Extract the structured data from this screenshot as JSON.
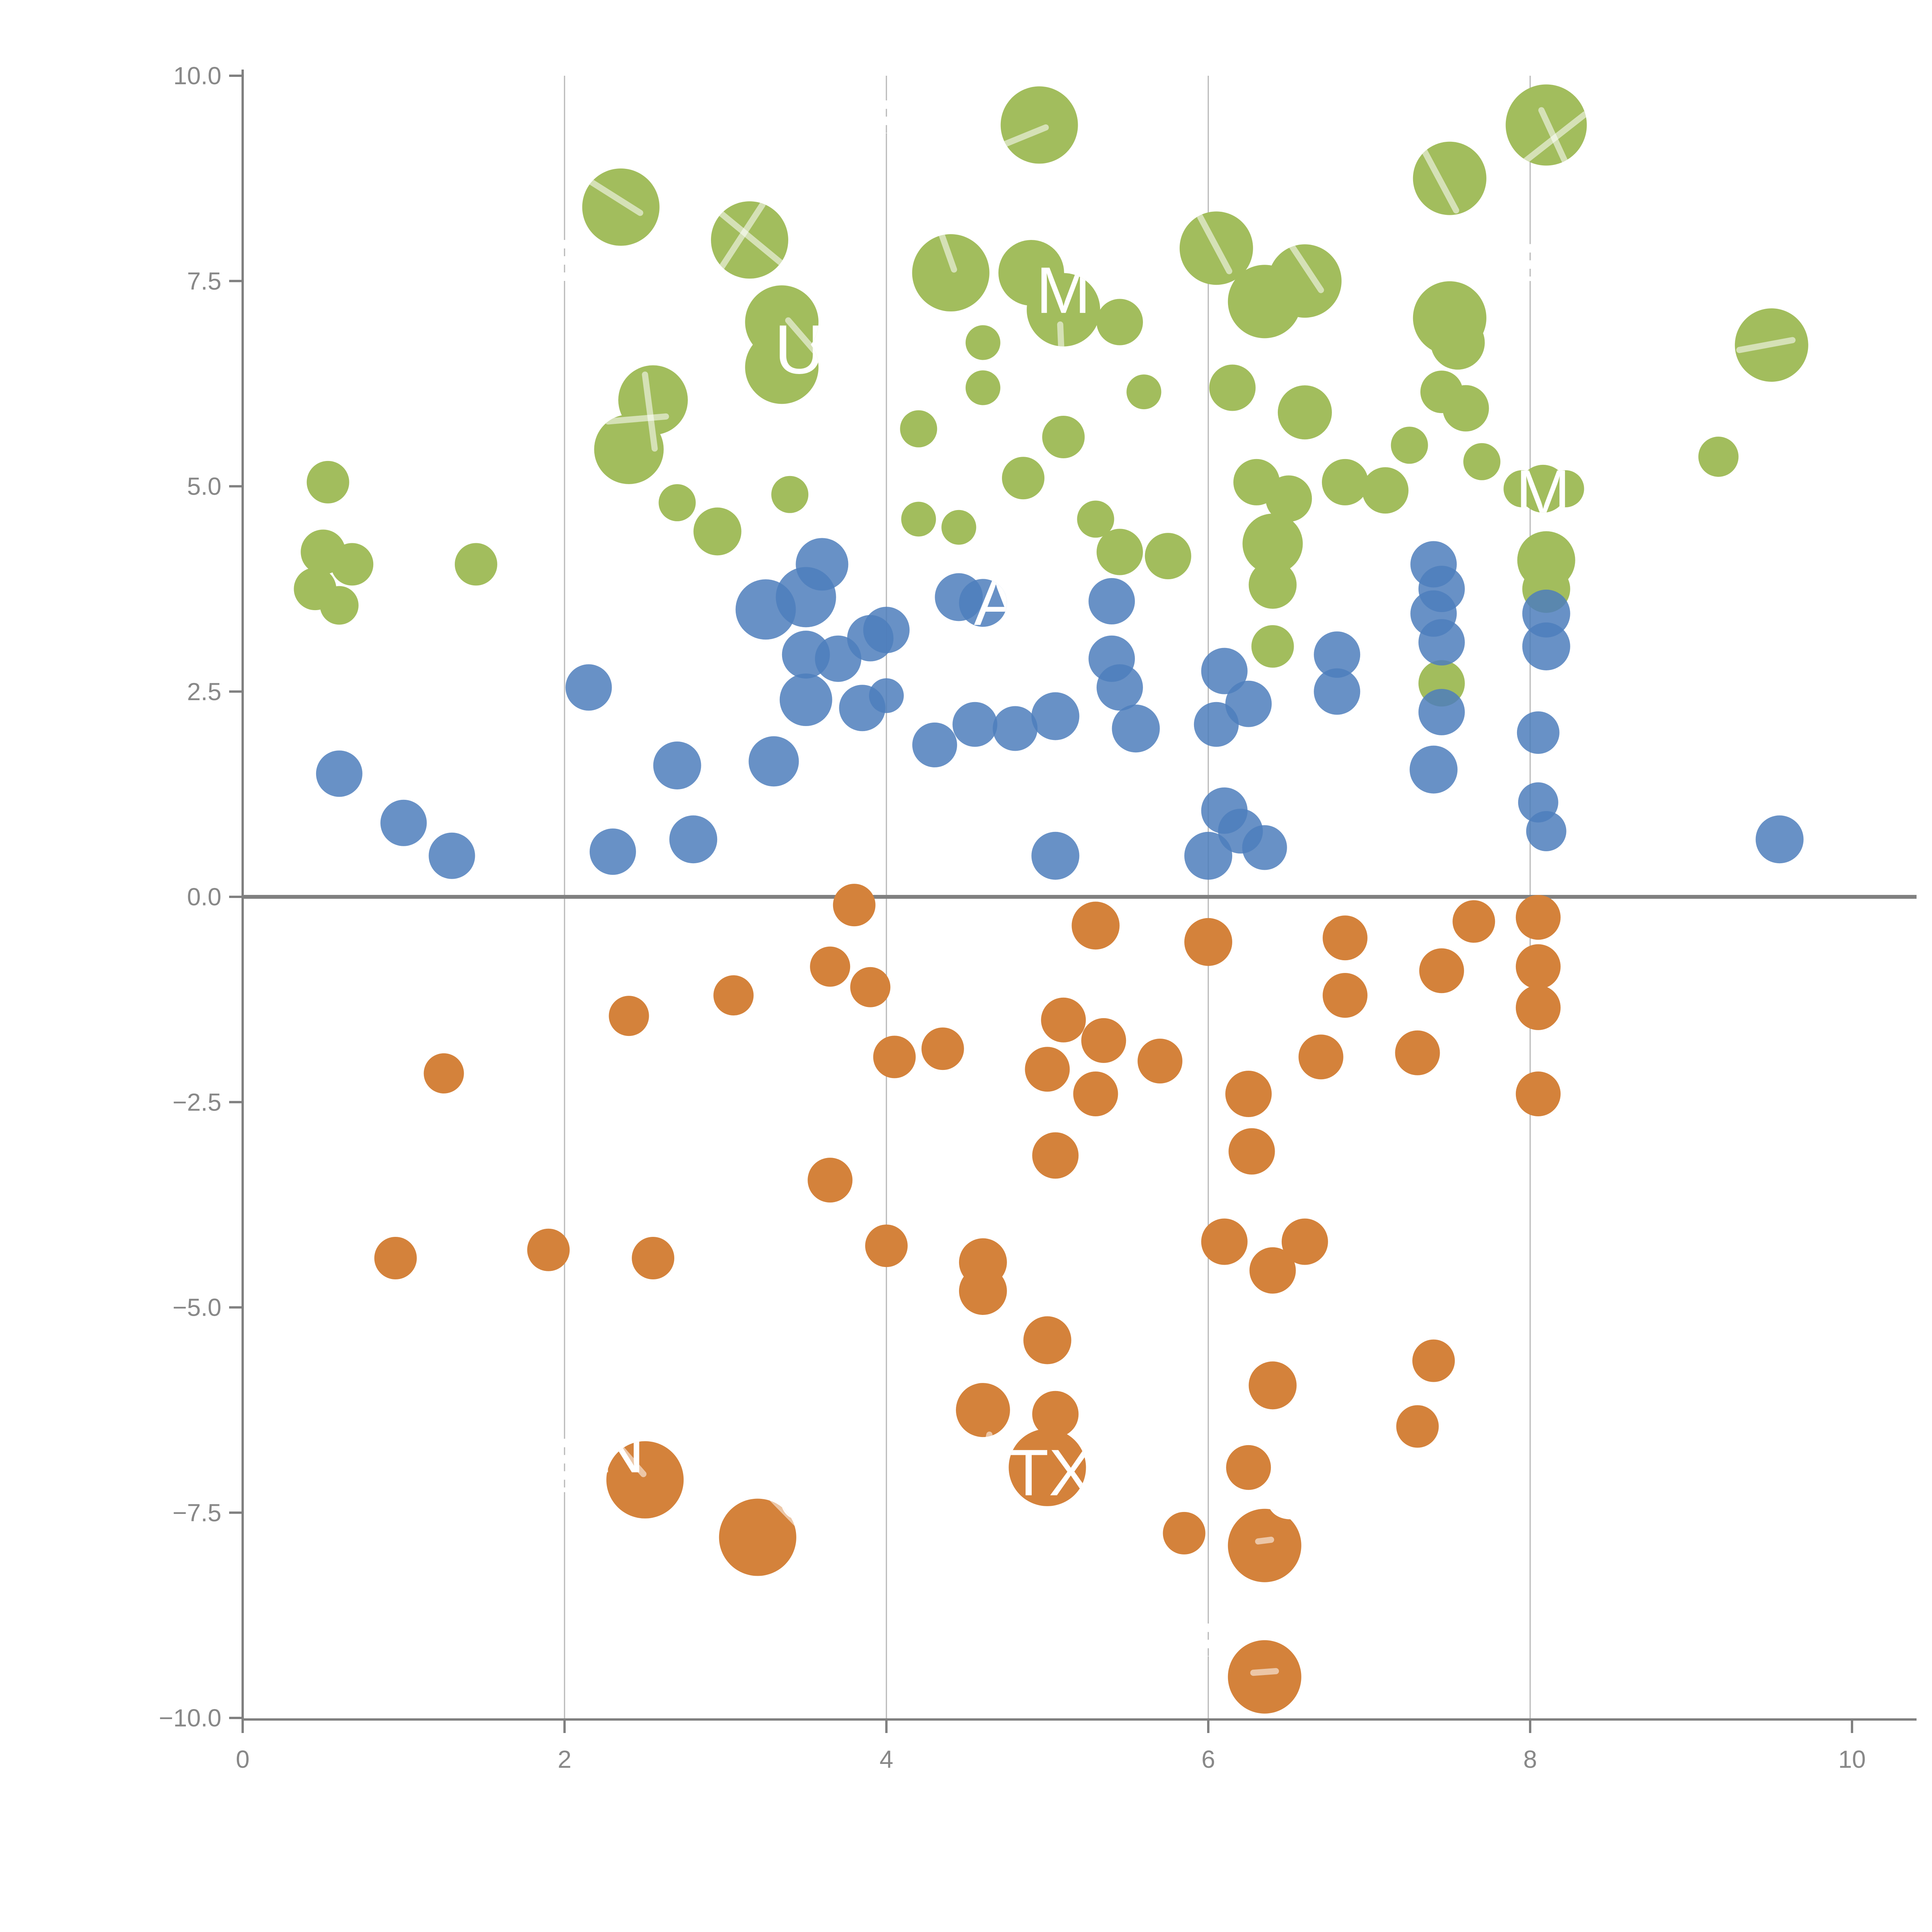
{
  "chart_data": {
    "type": "scatter",
    "title": "",
    "xlabel": "",
    "ylabel": "",
    "xlim": [
      0,
      10
    ],
    "ylim": [
      -10,
      10
    ],
    "x_ticks": [
      0,
      2,
      4,
      6,
      8,
      10
    ],
    "x_tick_labels": [
      "0",
      "2",
      "4",
      "6",
      "8",
      "10"
    ],
    "y_ticks": [
      10.0,
      7.5,
      5.0,
      2.5,
      0.0,
      -2.5,
      -5.0,
      -7.5,
      -10.0
    ],
    "y_tick_labels": [
      "10.0",
      "7.5",
      "5.0",
      "2.5",
      "0.0",
      "−2.5",
      "−5.0",
      "−7.5",
      "−10.0"
    ],
    "grid_x_values": [
      2,
      4,
      6,
      8
    ],
    "grid_on": true,
    "zero_line_y": 0,
    "legend": "none",
    "series": [
      {
        "name": "green",
        "color": "#a2bd5d",
        "opacity": 1.0,
        "points": [
          {
            "x": 0.53,
            "y": 5.05,
            "r": 55
          },
          {
            "x": 0.5,
            "y": 4.2,
            "r": 58
          },
          {
            "x": 0.68,
            "y": 4.05,
            "r": 55
          },
          {
            "x": 0.45,
            "y": 3.75,
            "r": 55
          },
          {
            "x": 0.6,
            "y": 3.55,
            "r": 50
          },
          {
            "x": 1.45,
            "y": 4.05,
            "r": 55
          },
          {
            "x": 2.35,
            "y": 8.4,
            "r": 100
          },
          {
            "x": 3.15,
            "y": 8.0,
            "r": 100
          },
          {
            "x": 3.35,
            "y": 7.0,
            "r": 95
          },
          {
            "x": 3.35,
            "y": 6.45,
            "r": 95
          },
          {
            "x": 2.55,
            "y": 6.05,
            "r": 90
          },
          {
            "x": 2.4,
            "y": 5.45,
            "r": 90
          },
          {
            "x": 2.95,
            "y": 4.45,
            "r": 62
          },
          {
            "x": 2.7,
            "y": 4.8,
            "r": 48
          },
          {
            "x": 3.4,
            "y": 4.9,
            "r": 48
          },
          {
            "x": 4.4,
            "y": 7.6,
            "r": 100
          },
          {
            "x": 4.6,
            "y": 6.75,
            "r": 45
          },
          {
            "x": 4.6,
            "y": 6.2,
            "r": 45
          },
          {
            "x": 4.2,
            "y": 5.7,
            "r": 48
          },
          {
            "x": 4.95,
            "y": 9.4,
            "r": 100
          },
          {
            "x": 4.9,
            "y": 7.6,
            "r": 85
          },
          {
            "x": 5.1,
            "y": 7.15,
            "r": 95
          },
          {
            "x": 5.45,
            "y": 7.0,
            "r": 60
          },
          {
            "x": 5.1,
            "y": 5.6,
            "r": 55
          },
          {
            "x": 4.2,
            "y": 4.6,
            "r": 45
          },
          {
            "x": 4.45,
            "y": 4.5,
            "r": 45
          },
          {
            "x": 4.85,
            "y": 5.1,
            "r": 55
          },
          {
            "x": 5.3,
            "y": 4.6,
            "r": 48
          },
          {
            "x": 5.45,
            "y": 4.2,
            "r": 60
          },
          {
            "x": 5.75,
            "y": 4.15,
            "r": 60
          },
          {
            "x": 5.6,
            "y": 6.15,
            "r": 45
          },
          {
            "x": 6.15,
            "y": 6.2,
            "r": 60
          },
          {
            "x": 6.6,
            "y": 5.9,
            "r": 70
          },
          {
            "x": 6.3,
            "y": 5.05,
            "r": 60
          },
          {
            "x": 6.5,
            "y": 4.85,
            "r": 60
          },
          {
            "x": 6.85,
            "y": 5.05,
            "r": 60
          },
          {
            "x": 7.1,
            "y": 4.95,
            "r": 60
          },
          {
            "x": 6.4,
            "y": 4.3,
            "r": 78
          },
          {
            "x": 6.4,
            "y": 3.8,
            "r": 62
          },
          {
            "x": 6.4,
            "y": 3.05,
            "r": 55
          },
          {
            "x": 6.05,
            "y": 7.9,
            "r": 95
          },
          {
            "x": 6.35,
            "y": 7.25,
            "r": 95
          },
          {
            "x": 6.6,
            "y": 7.5,
            "r": 95
          },
          {
            "x": 7.5,
            "y": 8.75,
            "r": 95
          },
          {
            "x": 7.5,
            "y": 7.05,
            "r": 95
          },
          {
            "x": 7.55,
            "y": 6.75,
            "r": 70
          },
          {
            "x": 7.45,
            "y": 6.15,
            "r": 55
          },
          {
            "x": 7.6,
            "y": 5.95,
            "r": 60
          },
          {
            "x": 7.25,
            "y": 5.5,
            "r": 48
          },
          {
            "x": 7.7,
            "y": 5.3,
            "r": 48
          },
          {
            "x": 8.1,
            "y": 9.4,
            "r": 105
          },
          {
            "x": 7.95,
            "y": 4.97,
            "r": 48
          },
          {
            "x": 8.08,
            "y": 4.97,
            "r": 62
          },
          {
            "x": 8.22,
            "y": 4.97,
            "r": 48
          },
          {
            "x": 8.1,
            "y": 4.1,
            "r": 75
          },
          {
            "x": 8.1,
            "y": 3.75,
            "r": 62
          },
          {
            "x": 7.45,
            "y": 2.6,
            "r": 60
          },
          {
            "x": 9.17,
            "y": 5.36,
            "r": 52
          },
          {
            "x": 9.5,
            "y": 6.72,
            "r": 95
          }
        ]
      },
      {
        "name": "orange",
        "color": "#d4823b",
        "opacity": 1.0,
        "points": [
          {
            "x": 1.25,
            "y": -2.15,
            "r": 52
          },
          {
            "x": 2.4,
            "y": -1.45,
            "r": 52
          },
          {
            "x": 3.05,
            "y": -1.2,
            "r": 52
          },
          {
            "x": 3.8,
            "y": -0.1,
            "r": 55
          },
          {
            "x": 3.65,
            "y": -0.85,
            "r": 52
          },
          {
            "x": 3.9,
            "y": -1.1,
            "r": 52
          },
          {
            "x": 5.3,
            "y": -0.35,
            "r": 62
          },
          {
            "x": 6.0,
            "y": -0.55,
            "r": 62
          },
          {
            "x": 6.85,
            "y": -0.5,
            "r": 58
          },
          {
            "x": 6.85,
            "y": -1.2,
            "r": 58
          },
          {
            "x": 6.7,
            "y": -1.95,
            "r": 58
          },
          {
            "x": 5.1,
            "y": -1.5,
            "r": 58
          },
          {
            "x": 5.35,
            "y": -1.75,
            "r": 58
          },
          {
            "x": 5.0,
            "y": -2.1,
            "r": 58
          },
          {
            "x": 5.3,
            "y": -2.4,
            "r": 58
          },
          {
            "x": 5.7,
            "y": -2.0,
            "r": 58
          },
          {
            "x": 4.05,
            "y": -1.95,
            "r": 55
          },
          {
            "x": 4.35,
            "y": -1.85,
            "r": 55
          },
          {
            "x": 5.05,
            "y": -3.15,
            "r": 60
          },
          {
            "x": 6.25,
            "y": -2.4,
            "r": 60
          },
          {
            "x": 6.27,
            "y": -3.1,
            "r": 60
          },
          {
            "x": 3.65,
            "y": -3.45,
            "r": 58
          },
          {
            "x": 0.95,
            "y": -4.4,
            "r": 55
          },
          {
            "x": 1.9,
            "y": -4.3,
            "r": 55
          },
          {
            "x": 2.55,
            "y": -4.4,
            "r": 55
          },
          {
            "x": 4.0,
            "y": -4.25,
            "r": 55
          },
          {
            "x": 4.6,
            "y": -4.45,
            "r": 62
          },
          {
            "x": 4.6,
            "y": -4.8,
            "r": 62
          },
          {
            "x": 5.0,
            "y": -5.4,
            "r": 62
          },
          {
            "x": 4.6,
            "y": -6.25,
            "r": 70
          },
          {
            "x": 5.05,
            "y": -6.3,
            "r": 60
          },
          {
            "x": 6.1,
            "y": -4.2,
            "r": 60
          },
          {
            "x": 6.6,
            "y": -4.2,
            "r": 60
          },
          {
            "x": 6.4,
            "y": -4.55,
            "r": 60
          },
          {
            "x": 6.4,
            "y": -5.95,
            "r": 62
          },
          {
            "x": 7.3,
            "y": -1.9,
            "r": 58
          },
          {
            "x": 7.45,
            "y": -0.9,
            "r": 58
          },
          {
            "x": 7.65,
            "y": -0.3,
            "r": 55
          },
          {
            "x": 8.05,
            "y": -0.25,
            "r": 58
          },
          {
            "x": 8.05,
            "y": -0.85,
            "r": 58
          },
          {
            "x": 8.05,
            "y": -1.35,
            "r": 58
          },
          {
            "x": 8.05,
            "y": -2.4,
            "r": 58
          },
          {
            "x": 7.3,
            "y": -6.45,
            "r": 55
          },
          {
            "x": 7.4,
            "y": -5.65,
            "r": 55
          },
          {
            "x": 2.5,
            "y": -7.1,
            "r": 100
          },
          {
            "x": 3.2,
            "y": -7.8,
            "r": 100
          },
          {
            "x": 5.0,
            "y": -6.95,
            "r": 100
          },
          {
            "x": 5.85,
            "y": -7.75,
            "r": 55
          },
          {
            "x": 6.25,
            "y": -6.95,
            "r": 58
          },
          {
            "x": 6.35,
            "y": -7.9,
            "r": 95
          },
          {
            "x": 6.35,
            "y": -9.5,
            "r": 95
          }
        ]
      },
      {
        "name": "blue",
        "color": "#4e7ebc",
        "opacity": 0.85,
        "points": [
          {
            "x": 0.6,
            "y": 1.5,
            "r": 60
          },
          {
            "x": 1.0,
            "y": 0.9,
            "r": 60
          },
          {
            "x": 1.3,
            "y": 0.5,
            "r": 60
          },
          {
            "x": 2.15,
            "y": 2.55,
            "r": 60
          },
          {
            "x": 2.7,
            "y": 1.6,
            "r": 62
          },
          {
            "x": 2.3,
            "y": 0.55,
            "r": 60
          },
          {
            "x": 2.8,
            "y": 0.7,
            "r": 62
          },
          {
            "x": 3.25,
            "y": 3.5,
            "r": 78
          },
          {
            "x": 3.5,
            "y": 3.65,
            "r": 78
          },
          {
            "x": 3.6,
            "y": 4.05,
            "r": 68
          },
          {
            "x": 3.5,
            "y": 2.95,
            "r": 62
          },
          {
            "x": 3.5,
            "y": 2.4,
            "r": 68
          },
          {
            "x": 3.7,
            "y": 2.9,
            "r": 60
          },
          {
            "x": 3.9,
            "y": 3.15,
            "r": 60
          },
          {
            "x": 3.85,
            "y": 2.3,
            "r": 60
          },
          {
            "x": 3.3,
            "y": 1.65,
            "r": 65
          },
          {
            "x": 4.0,
            "y": 3.25,
            "r": 60
          },
          {
            "x": 4.0,
            "y": 2.45,
            "r": 45
          },
          {
            "x": 4.45,
            "y": 3.65,
            "r": 62
          },
          {
            "x": 4.6,
            "y": 3.58,
            "r": 62
          },
          {
            "x": 4.3,
            "y": 1.85,
            "r": 58
          },
          {
            "x": 4.55,
            "y": 2.1,
            "r": 58
          },
          {
            "x": 4.8,
            "y": 2.05,
            "r": 58
          },
          {
            "x": 5.05,
            "y": 2.2,
            "r": 62
          },
          {
            "x": 5.55,
            "y": 2.05,
            "r": 62
          },
          {
            "x": 5.4,
            "y": 3.6,
            "r": 60
          },
          {
            "x": 5.4,
            "y": 2.9,
            "r": 60
          },
          {
            "x": 5.45,
            "y": 2.55,
            "r": 60
          },
          {
            "x": 5.05,
            "y": 0.5,
            "r": 62
          },
          {
            "x": 6.0,
            "y": 0.5,
            "r": 62
          },
          {
            "x": 6.2,
            "y": 0.8,
            "r": 58
          },
          {
            "x": 6.35,
            "y": 0.6,
            "r": 58
          },
          {
            "x": 6.1,
            "y": 1.05,
            "r": 60
          },
          {
            "x": 6.05,
            "y": 2.1,
            "r": 58
          },
          {
            "x": 6.1,
            "y": 2.75,
            "r": 60
          },
          {
            "x": 6.25,
            "y": 2.35,
            "r": 60
          },
          {
            "x": 6.8,
            "y": 2.95,
            "r": 60
          },
          {
            "x": 6.8,
            "y": 2.5,
            "r": 60
          },
          {
            "x": 7.4,
            "y": 4.05,
            "r": 60
          },
          {
            "x": 7.45,
            "y": 3.75,
            "r": 60
          },
          {
            "x": 7.4,
            "y": 3.45,
            "r": 60
          },
          {
            "x": 7.45,
            "y": 3.1,
            "r": 60
          },
          {
            "x": 7.45,
            "y": 2.25,
            "r": 60
          },
          {
            "x": 7.4,
            "y": 1.55,
            "r": 62
          },
          {
            "x": 8.1,
            "y": 3.45,
            "r": 62
          },
          {
            "x": 8.1,
            "y": 3.05,
            "r": 62
          },
          {
            "x": 8.05,
            "y": 2.0,
            "r": 55
          },
          {
            "x": 8.05,
            "y": 1.15,
            "r": 52
          },
          {
            "x": 8.1,
            "y": 0.8,
            "r": 52
          },
          {
            "x": 9.55,
            "y": 0.7,
            "r": 62
          }
        ]
      }
    ],
    "point_labels": [
      {
        "text": "U",
        "x": 3.46,
        "y": 6.68,
        "size": 180
      },
      {
        "text": "M",
        "x": 5.1,
        "y": 7.4,
        "size": 170
      },
      {
        "text": "A",
        "x": 4.68,
        "y": 3.6,
        "size": 170
      },
      {
        "text": "M",
        "x": 8.08,
        "y": 4.93,
        "size": 170
      },
      {
        "text": "TX",
        "x": 5.02,
        "y": -7.0,
        "size": 170
      },
      {
        "text": "C",
        "x": 6.5,
        "y": -7.25,
        "size": 190
      },
      {
        "text": "N",
        "x": 2.35,
        "y": -6.72,
        "size": 170
      },
      {
        "text": "O",
        "x": 3.48,
        "y": -7.3,
        "size": 170
      }
    ],
    "slash_marks": [
      {
        "x1": 2.09,
        "y1": 8.8,
        "x2": 2.47,
        "y2": 8.33
      },
      {
        "x1": 2.95,
        "y1": 8.36,
        "x2": 3.37,
        "y2": 7.68
      },
      {
        "x1": 3.23,
        "y1": 8.43,
        "x2": 2.93,
        "y2": 7.53
      },
      {
        "x1": 2.5,
        "y1": 6.36,
        "x2": 2.56,
        "y2": 5.46
      },
      {
        "x1": 2.27,
        "y1": 5.79,
        "x2": 2.63,
        "y2": 5.85
      },
      {
        "x1": 4.29,
        "y1": 8.36,
        "x2": 4.42,
        "y2": 7.64
      },
      {
        "x1": 4.64,
        "y1": 9.09,
        "x2": 4.99,
        "y2": 9.37
      },
      {
        "x1": 5.08,
        "y1": 6.97,
        "x2": 5.09,
        "y2": 6.52
      },
      {
        "x1": 5.95,
        "y1": 8.28,
        "x2": 6.13,
        "y2": 7.62
      },
      {
        "x1": 6.46,
        "y1": 8.1,
        "x2": 6.7,
        "y2": 7.39
      },
      {
        "x1": 7.33,
        "y1": 9.13,
        "x2": 7.54,
        "y2": 8.36
      },
      {
        "x1": 7.78,
        "y1": 8.67,
        "x2": 8.34,
        "y2": 9.53
      },
      {
        "x1": 8.07,
        "y1": 9.58,
        "x2": 8.23,
        "y2": 8.9
      },
      {
        "x1": 9.3,
        "y1": 6.66,
        "x2": 9.63,
        "y2": 6.78
      },
      {
        "x1": 2.25,
        "y1": -6.49,
        "x2": 2.49,
        "y2": -7.03
      },
      {
        "x1": 3.27,
        "y1": -7.29,
        "x2": 3.47,
        "y2": -7.69
      },
      {
        "x1": 4.64,
        "y1": -6.55,
        "x2": 4.56,
        "y2": -7.24
      },
      {
        "x1": 6.31,
        "y1": -7.85,
        "x2": 6.39,
        "y2": -7.83
      },
      {
        "x1": 6.28,
        "y1": -9.45,
        "x2": 6.42,
        "y2": -9.43
      },
      {
        "x1": 3.39,
        "y1": 7.02,
        "x2": 3.58,
        "y2": 6.59
      }
    ],
    "grid_dash_breaks": [
      {
        "x": 2,
        "y1": -6.6,
        "y2": -7.25
      },
      {
        "x": 2,
        "y1": 8.0,
        "y2": 7.45
      },
      {
        "x": 8,
        "y1": 7.95,
        "y2": 7.5
      },
      {
        "x": 6,
        "y1": -8.85,
        "y2": -9.25
      },
      {
        "x": 4,
        "y1": 9.7,
        "y2": 9.3
      }
    ],
    "style": {
      "axis_color": "#808080",
      "tick_label_color": "#888888",
      "grid_color": "#b7b7b7",
      "zero_line_color": "#808080",
      "label_color": "#ffffff",
      "slash_color": "#ffffff",
      "background": "#ffffff"
    }
  }
}
